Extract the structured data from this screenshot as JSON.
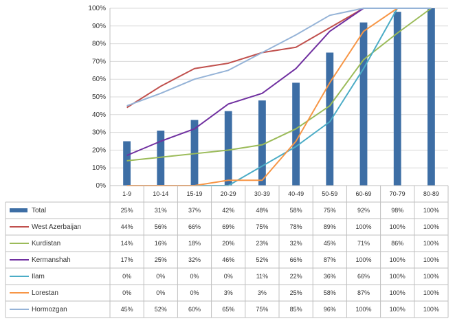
{
  "chart_data": {
    "type": "bar+line",
    "title": "",
    "xlabel": "",
    "ylabel": "",
    "ylim": [
      0,
      100
    ],
    "y_ticks": [
      "0%",
      "10%",
      "20%",
      "30%",
      "40%",
      "50%",
      "60%",
      "70%",
      "80%",
      "90%",
      "100%"
    ],
    "grid": true,
    "legend": "data-table-below",
    "categories": [
      "1-9",
      "10-14",
      "15-19",
      "20-29",
      "30-39",
      "40-49",
      "50-59",
      "60-69",
      "70-79",
      "80-89"
    ],
    "series": [
      {
        "name": "Total",
        "kind": "bar",
        "color": "#3d6ea5",
        "values": [
          25,
          31,
          37,
          42,
          48,
          58,
          75,
          92,
          98,
          100
        ],
        "labels": [
          "25%",
          "31%",
          "37%",
          "42%",
          "48%",
          "58%",
          "75%",
          "92%",
          "98%",
          "100%"
        ]
      },
      {
        "name": "West Azerbaijan",
        "kind": "line",
        "color": "#c0504d",
        "values": [
          44,
          56,
          66,
          69,
          75,
          78,
          89,
          100,
          100,
          100
        ],
        "labels": [
          "44%",
          "56%",
          "66%",
          "69%",
          "75%",
          "78%",
          "89%",
          "100%",
          "100%",
          "100%"
        ]
      },
      {
        "name": "Kurdistan",
        "kind": "line",
        "color": "#9bbb59",
        "values": [
          14,
          16,
          18,
          20,
          23,
          32,
          45,
          71,
          86,
          100
        ],
        "labels": [
          "14%",
          "16%",
          "18%",
          "20%",
          "23%",
          "32%",
          "45%",
          "71%",
          "86%",
          "100%"
        ]
      },
      {
        "name": "Kermanshah",
        "kind": "line",
        "color": "#7030a0",
        "values": [
          17,
          25,
          32,
          46,
          52,
          66,
          87,
          100,
          100,
          100
        ],
        "labels": [
          "17%",
          "25%",
          "32%",
          "46%",
          "52%",
          "66%",
          "87%",
          "100%",
          "100%",
          "100%"
        ]
      },
      {
        "name": "Ilam",
        "kind": "line",
        "color": "#4bacc6",
        "values": [
          0,
          0,
          0,
          0,
          11,
          22,
          36,
          66,
          100,
          100
        ],
        "labels": [
          "0%",
          "0%",
          "0%",
          "0%",
          "11%",
          "22%",
          "36%",
          "66%",
          "100%",
          "100%"
        ]
      },
      {
        "name": "Lorestan",
        "kind": "line",
        "color": "#f79646",
        "values": [
          0,
          0,
          0,
          3,
          3,
          25,
          58,
          87,
          100,
          100
        ],
        "labels": [
          "0%",
          "0%",
          "0%",
          "3%",
          "3%",
          "25%",
          "58%",
          "87%",
          "100%",
          "100%"
        ]
      },
      {
        "name": "Hormozgan",
        "kind": "line",
        "color": "#95b3d7",
        "values": [
          45,
          52,
          60,
          65,
          75,
          85,
          96,
          100,
          100,
          100
        ],
        "labels": [
          "45%",
          "52%",
          "60%",
          "65%",
          "75%",
          "85%",
          "96%",
          "100%",
          "100%",
          "100%"
        ]
      }
    ]
  }
}
